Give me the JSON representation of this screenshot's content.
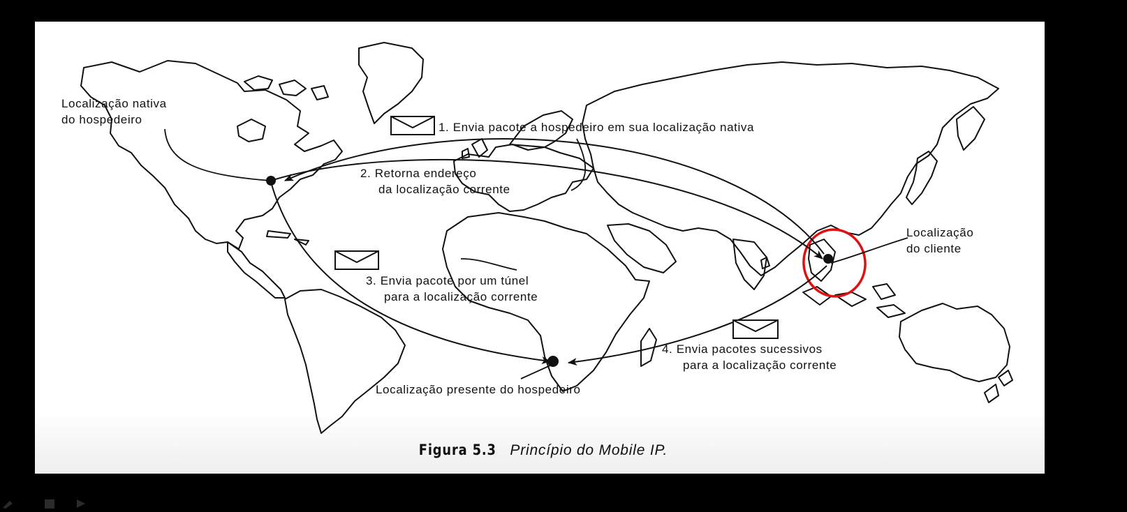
{
  "figure": {
    "caption_number": "Figura 5.3",
    "caption_text": "Princípio do Mobile IP."
  },
  "labels": {
    "home_location_l1": "Localização nativa",
    "home_location_l2": "do hospedeiro",
    "step1": "1. Envia pacote a hospedeiro em sua localização nativa",
    "step2_l1": "2. Retorna endereço",
    "step2_l2": "da localização corrente",
    "step3_l1": "3. Envia pacote por um túnel",
    "step3_l2": "para a localização corrente",
    "step4_l1": "4. Envia pacotes sucessivos",
    "step4_l2": "para a localização corrente",
    "client_l1": "Localização",
    "client_l2": "do cliente",
    "current_location": "Localização presente do hospedeiro"
  },
  "colors": {
    "background": "#000000",
    "slide": "#ffffff",
    "ink": "#111111",
    "highlight_circle": "#e01010"
  },
  "icons": [
    "envelope-icon",
    "envelope-icon",
    "envelope-icon"
  ]
}
